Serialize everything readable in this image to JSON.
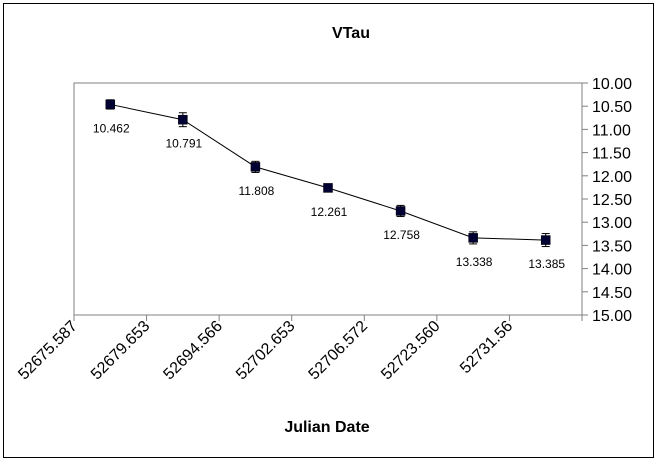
{
  "chart_data": {
    "type": "line",
    "title": "VTau",
    "xlabel": "Julian Date",
    "ylabel": "",
    "categories": [
      "52675.587",
      "52679.653",
      "52694.566",
      "52702.653",
      "52706.572",
      "52723.560",
      "52731.56"
    ],
    "values": [
      10.462,
      10.791,
      11.808,
      12.261,
      12.758,
      13.338,
      13.385
    ],
    "data_labels": [
      "10.462",
      "10.791",
      "11.808",
      "12.261",
      "12.758",
      "13.338",
      "13.385"
    ],
    "error": [
      0.1,
      0.15,
      0.12,
      0.05,
      0.12,
      0.13,
      0.14
    ],
    "ylim": [
      10.0,
      15.0
    ],
    "y_reversed": true,
    "y_ticks": [
      "10.00",
      "10.50",
      "11.00",
      "11.50",
      "12.00",
      "12.50",
      "13.00",
      "13.50",
      "14.00",
      "14.50",
      "15.00"
    ],
    "y_axis_position": "right",
    "grid": false,
    "legend": "none",
    "colors": {
      "marker": "#000033",
      "line": "#000000",
      "axis": "#808080"
    }
  }
}
